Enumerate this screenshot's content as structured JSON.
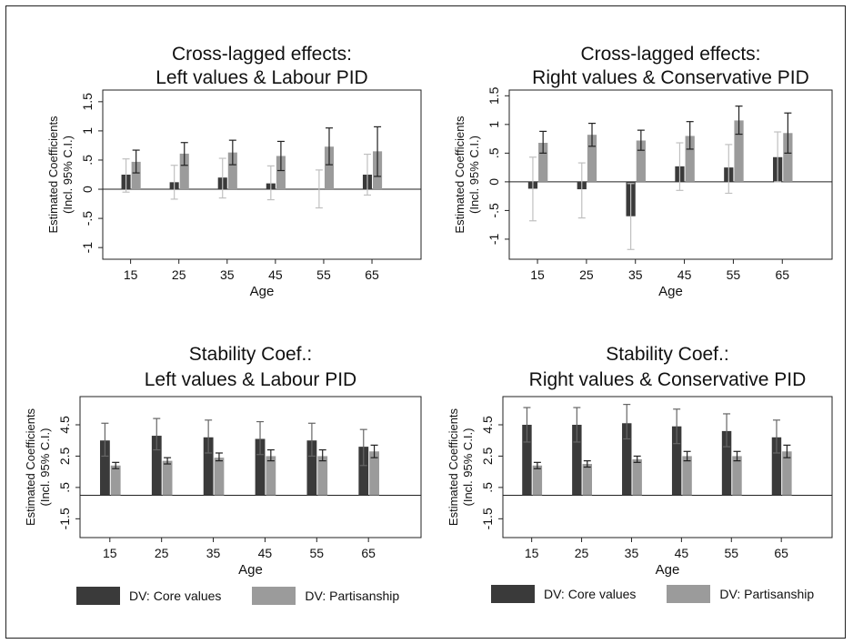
{
  "colors": {
    "core": "#3a3a3a",
    "partisanship": "#9b9b9b",
    "ci_core": "#2a2a2a",
    "ci_partisanship": "#c4c4c4"
  },
  "legends": [
    {
      "core_label": "DV: Core values",
      "partisanship_label": "DV: Partisanship"
    },
    {
      "core_label": "DV: Core values",
      "partisanship_label": "DV: Partisanship"
    }
  ],
  "chart_data": [
    {
      "type": "bar",
      "title": [
        "Cross-lagged effects:",
        "Left values & Labour PID"
      ],
      "xlabel": "Age",
      "ylabel": [
        "Estimated Coefficients",
        "(Incl. 95% C.I.)"
      ],
      "categories": [
        "15",
        "25",
        "35",
        "45",
        "55",
        "65"
      ],
      "ylim": [
        -1.2,
        1.7
      ],
      "yticks": [
        -1,
        -0.5,
        0,
        0.5,
        1,
        1.5
      ],
      "ytick_labels": [
        "-1",
        "-.5",
        "0",
        ".5",
        "1",
        "1.5"
      ],
      "series": [
        {
          "name": "DV: Core values",
          "values": [
            0.25,
            0.12,
            0.2,
            0.1,
            0.0,
            0.25
          ],
          "ci_low": [
            -0.05,
            -0.17,
            -0.15,
            -0.18,
            -0.32,
            -0.1
          ],
          "ci_high": [
            0.52,
            0.41,
            0.53,
            0.4,
            0.33,
            0.6
          ]
        },
        {
          "name": "DV: Partisanship",
          "values": [
            0.47,
            0.61,
            0.63,
            0.57,
            0.73,
            0.65
          ],
          "ci_low": [
            0.28,
            0.41,
            0.42,
            0.32,
            0.42,
            0.22
          ],
          "ci_high": [
            0.67,
            0.8,
            0.84,
            0.82,
            1.05,
            1.07
          ]
        }
      ]
    },
    {
      "type": "bar",
      "title": [
        "Cross-lagged effects:",
        "Right values & Conservative PID"
      ],
      "xlabel": "Age",
      "ylabel": [
        "Estimated Coefficients",
        "(Incl. 95% C.I.)"
      ],
      "categories": [
        "15",
        "25",
        "35",
        "45",
        "55",
        "65"
      ],
      "ylim": [
        -1.35,
        1.6
      ],
      "yticks": [
        -1,
        -0.5,
        0,
        0.5,
        1,
        1.5
      ],
      "ytick_labels": [
        "-1",
        "-.5",
        "0",
        ".5",
        "1",
        "1.5"
      ],
      "series": [
        {
          "name": "DV: Core values",
          "values": [
            -0.12,
            -0.13,
            -0.6,
            0.27,
            0.25,
            0.43
          ],
          "ci_low": [
            -0.68,
            -0.63,
            -1.18,
            -0.15,
            -0.2,
            0.0
          ],
          "ci_high": [
            0.43,
            0.33,
            -0.03,
            0.68,
            0.65,
            0.87
          ]
        },
        {
          "name": "DV: Partisanship",
          "values": [
            0.68,
            0.82,
            0.72,
            0.8,
            1.07,
            0.85
          ],
          "ci_low": [
            0.5,
            0.62,
            0.55,
            0.57,
            0.83,
            0.5
          ],
          "ci_high": [
            0.88,
            1.02,
            0.9,
            1.05,
            1.32,
            1.2
          ]
        }
      ]
    },
    {
      "type": "bar",
      "title": [
        "Stability Coef.:",
        "Left values & Labour PID"
      ],
      "xlabel": "Age",
      "ylabel": [
        "Estimated Coefficients",
        "(Incl. 95% C.I.)"
      ],
      "categories": [
        "15",
        "25",
        "35",
        "45",
        "55",
        "65"
      ],
      "ylim": [
        -2.7,
        6.3
      ],
      "yticks": [
        -1.5,
        0.5,
        2.5,
        4.5
      ],
      "ytick_labels": [
        "-1.5",
        ".5",
        "2.5",
        "4.5"
      ],
      "series": [
        {
          "name": "DV: Core values",
          "values": [
            3.5,
            3.8,
            3.7,
            3.6,
            3.5,
            3.1
          ],
          "ci_low": [
            2.5,
            2.9,
            2.7,
            2.6,
            2.5,
            1.9
          ],
          "ci_high": [
            4.6,
            4.9,
            4.8,
            4.7,
            4.6,
            4.2
          ]
        },
        {
          "name": "DV: Partisanship",
          "values": [
            1.9,
            2.2,
            2.4,
            2.5,
            2.5,
            2.8
          ],
          "ci_low": [
            1.7,
            2.0,
            2.2,
            2.2,
            2.2,
            2.4
          ],
          "ci_high": [
            2.1,
            2.4,
            2.7,
            2.9,
            2.9,
            3.2
          ]
        }
      ]
    },
    {
      "type": "bar",
      "title": [
        "Stability Coef.:",
        "Right values & Conservative PID"
      ],
      "xlabel": "Age",
      "ylabel": [
        "Estimated Coefficients",
        "(Incl. 95% C.I.)"
      ],
      "categories": [
        "15",
        "25",
        "35",
        "45",
        "55",
        "65"
      ],
      "ylim": [
        -2.7,
        6.3
      ],
      "yticks": [
        -1.5,
        0.5,
        2.5,
        4.5
      ],
      "ytick_labels": [
        "-1.5",
        ".5",
        "2.5",
        "4.5"
      ],
      "series": [
        {
          "name": "DV: Core values",
          "values": [
            4.5,
            4.5,
            4.6,
            4.4,
            4.1,
            3.7
          ],
          "ci_low": [
            3.4,
            3.4,
            3.6,
            3.3,
            3.1,
            2.7
          ],
          "ci_high": [
            5.6,
            5.6,
            5.8,
            5.5,
            5.2,
            4.8
          ]
        },
        {
          "name": "DV: Partisanship",
          "values": [
            1.9,
            2.0,
            2.3,
            2.5,
            2.5,
            2.8
          ],
          "ci_low": [
            1.7,
            1.8,
            2.1,
            2.2,
            2.2,
            2.4
          ],
          "ci_high": [
            2.1,
            2.2,
            2.5,
            2.8,
            2.8,
            3.2
          ]
        }
      ]
    }
  ]
}
